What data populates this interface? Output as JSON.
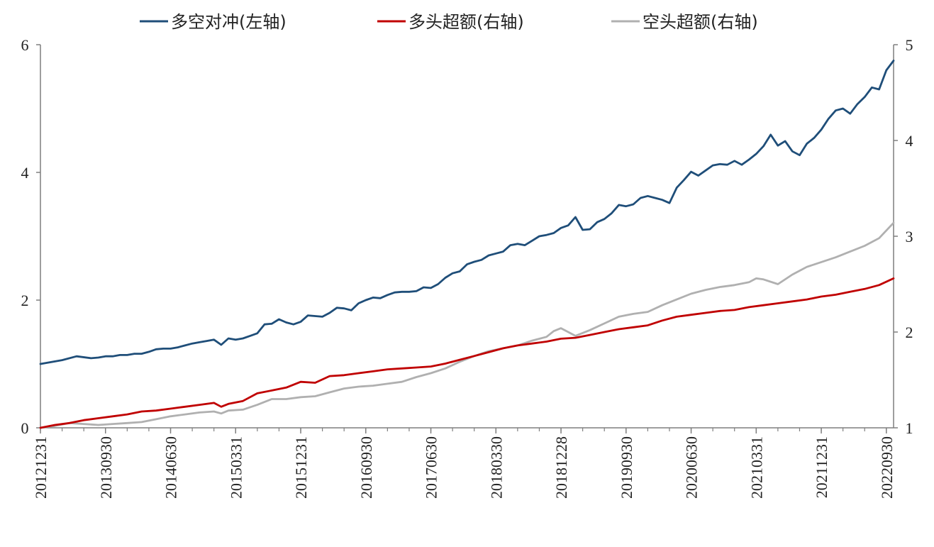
{
  "chart_data": {
    "type": "line",
    "title": "",
    "xlabel": "",
    "ylabel": "",
    "legend": {
      "placement": "top-center",
      "entries": [
        "多空对冲(左轴)",
        "多头超额(右轴)",
        "空头超额(右轴)"
      ]
    },
    "grid": false,
    "y_left": {
      "range": [
        0,
        6
      ],
      "ticks": [
        "0",
        "2",
        "4",
        "6"
      ]
    },
    "y_right": {
      "range": [
        1,
        5
      ],
      "ticks": [
        "1",
        "2",
        "3",
        "4",
        "5"
      ]
    },
    "x_tick_labels": [
      "20121231",
      "20130930",
      "20140630",
      "20150331",
      "20151231",
      "20160930",
      "20170630",
      "20180330",
      "20181228",
      "20190930",
      "20200630",
      "20210331",
      "20211231",
      "20220930"
    ],
    "x_tick_months": [
      0,
      9,
      18,
      27,
      36,
      45,
      54,
      63,
      72,
      81,
      90,
      99,
      108,
      117
    ],
    "months": 118,
    "series": [
      {
        "name": "多空对冲(左轴)",
        "axis": "left",
        "color": "#1f4e79",
        "x": [
          0,
          3,
          5,
          7,
          8,
          9,
          10,
          11,
          12,
          13,
          14,
          15,
          16,
          17,
          18,
          19,
          20,
          21,
          22,
          23,
          24,
          25,
          26,
          27,
          28,
          29,
          30,
          31,
          32,
          33,
          34,
          35,
          36,
          37,
          38,
          39,
          40,
          41,
          42,
          43,
          44,
          45,
          46,
          47,
          48,
          49,
          50,
          51,
          52,
          53,
          54,
          55,
          56,
          57,
          58,
          59,
          60,
          61,
          62,
          63,
          64,
          65,
          66,
          67,
          68,
          69,
          70,
          71,
          72,
          73,
          74,
          75,
          76,
          77,
          78,
          79,
          80,
          81,
          82,
          83,
          84,
          85,
          86,
          87,
          88,
          89,
          90,
          91,
          92,
          93,
          94,
          95,
          96,
          97,
          98,
          99,
          100,
          101,
          102,
          103,
          104,
          105,
          106,
          107,
          108,
          109,
          110,
          111,
          112,
          113,
          114,
          115,
          116,
          117,
          118
        ],
        "y": [
          1.0,
          1.06,
          1.12,
          1.09,
          1.1,
          1.12,
          1.12,
          1.14,
          1.14,
          1.16,
          1.16,
          1.19,
          1.23,
          1.24,
          1.24,
          1.26,
          1.29,
          1.32,
          1.34,
          1.36,
          1.38,
          1.3,
          1.4,
          1.38,
          1.4,
          1.44,
          1.48,
          1.62,
          1.63,
          1.7,
          1.65,
          1.62,
          1.66,
          1.76,
          1.75,
          1.74,
          1.8,
          1.88,
          1.87,
          1.84,
          1.95,
          2.0,
          2.04,
          2.03,
          2.08,
          2.12,
          2.13,
          2.13,
          2.14,
          2.2,
          2.19,
          2.25,
          2.35,
          2.42,
          2.45,
          2.56,
          2.6,
          2.63,
          2.7,
          2.73,
          2.76,
          2.86,
          2.88,
          2.86,
          2.93,
          3.0,
          3.02,
          3.05,
          3.13,
          3.17,
          3.3,
          3.1,
          3.11,
          3.22,
          3.27,
          3.36,
          3.49,
          3.47,
          3.5,
          3.6,
          3.63,
          3.6,
          3.57,
          3.52,
          3.76,
          3.88,
          4.01,
          3.95,
          4.03,
          4.11,
          4.13,
          4.12,
          4.18,
          4.12,
          4.2,
          4.29,
          4.41,
          4.59,
          4.42,
          4.49,
          4.33,
          4.27,
          4.45,
          4.54,
          4.67,
          4.84,
          4.97,
          5.0,
          4.92,
          5.07,
          5.18,
          5.33,
          5.3,
          5.6,
          5.75
        ]
      },
      {
        "name": "多头超额(右轴)",
        "axis": "right",
        "color": "#c00000",
        "x": [
          0,
          2,
          4,
          6,
          8,
          10,
          12,
          14,
          16,
          18,
          20,
          22,
          24,
          25,
          26,
          28,
          30,
          32,
          34,
          36,
          38,
          40,
          42,
          44,
          46,
          48,
          50,
          52,
          54,
          56,
          58,
          60,
          62,
          64,
          66,
          68,
          70,
          72,
          74,
          76,
          78,
          80,
          82,
          84,
          86,
          88,
          90,
          92,
          94,
          96,
          98,
          100,
          102,
          104,
          106,
          108,
          110,
          112,
          114,
          116,
          118
        ],
        "y": [
          1.0,
          1.03,
          1.05,
          1.08,
          1.1,
          1.12,
          1.14,
          1.17,
          1.18,
          1.2,
          1.22,
          1.24,
          1.26,
          1.22,
          1.25,
          1.28,
          1.36,
          1.39,
          1.42,
          1.48,
          1.47,
          1.54,
          1.55,
          1.57,
          1.59,
          1.61,
          1.62,
          1.63,
          1.64,
          1.67,
          1.71,
          1.75,
          1.79,
          1.83,
          1.86,
          1.88,
          1.9,
          1.93,
          1.94,
          1.97,
          2.0,
          2.03,
          2.05,
          2.07,
          2.12,
          2.16,
          2.18,
          2.2,
          2.22,
          2.23,
          2.26,
          2.28,
          2.3,
          2.32,
          2.34,
          2.37,
          2.39,
          2.42,
          2.45,
          2.49,
          2.56
        ]
      },
      {
        "name": "空头超额(右轴)",
        "axis": "right",
        "color": "#b0b0b0",
        "x": [
          0,
          2,
          4,
          6,
          8,
          10,
          12,
          14,
          16,
          18,
          20,
          22,
          24,
          25,
          26,
          28,
          30,
          32,
          34,
          36,
          38,
          40,
          42,
          44,
          46,
          48,
          50,
          52,
          54,
          56,
          58,
          60,
          62,
          64,
          66,
          68,
          70,
          71,
          72,
          73,
          74,
          76,
          78,
          80,
          82,
          84,
          86,
          88,
          90,
          92,
          94,
          96,
          98,
          99,
          100,
          102,
          104,
          106,
          108,
          110,
          112,
          114,
          116,
          118
        ],
        "y": [
          1.0,
          1.02,
          1.05,
          1.04,
          1.03,
          1.04,
          1.05,
          1.06,
          1.09,
          1.12,
          1.14,
          1.16,
          1.17,
          1.15,
          1.18,
          1.19,
          1.24,
          1.3,
          1.3,
          1.32,
          1.33,
          1.37,
          1.41,
          1.43,
          1.44,
          1.46,
          1.48,
          1.53,
          1.57,
          1.62,
          1.69,
          1.75,
          1.8,
          1.83,
          1.86,
          1.91,
          1.95,
          2.01,
          2.04,
          2.0,
          1.96,
          2.02,
          2.09,
          2.16,
          2.19,
          2.21,
          2.28,
          2.34,
          2.4,
          2.44,
          2.47,
          2.49,
          2.52,
          2.56,
          2.55,
          2.5,
          2.6,
          2.68,
          2.73,
          2.78,
          2.84,
          2.9,
          2.98,
          3.14
        ]
      }
    ]
  }
}
